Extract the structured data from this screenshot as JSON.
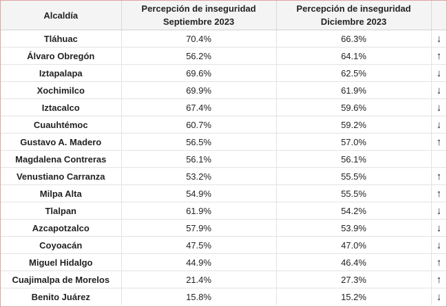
{
  "header": {
    "col_alcaldia": "Alcaldía",
    "col_sep_line1": "Percepción de inseguridad",
    "col_sep_line2": "Septiembre 2023",
    "col_dic_line1": "Percepción de inseguridad",
    "col_dic_line2": "Diciembre 2023",
    "col_trend": ""
  },
  "rows": [
    {
      "alcaldia": "Tláhuac",
      "sep": "70.4%",
      "dic": "66.3%",
      "trend": "↓"
    },
    {
      "alcaldia": "Álvaro Obregón",
      "sep": "56.2%",
      "dic": "64.1%",
      "trend": "↑"
    },
    {
      "alcaldia": "Iztapalapa",
      "sep": "69.6%",
      "dic": "62.5%",
      "trend": "↓"
    },
    {
      "alcaldia": "Xochimilco",
      "sep": "69.9%",
      "dic": "61.9%",
      "trend": "↓"
    },
    {
      "alcaldia": "Iztacalco",
      "sep": "67.4%",
      "dic": "59.6%",
      "trend": "↓"
    },
    {
      "alcaldia": "Cuauhtémoc",
      "sep": "60.7%",
      "dic": "59.2%",
      "trend": "↓"
    },
    {
      "alcaldia": "Gustavo A. Madero",
      "sep": "56.5%",
      "dic": "57.0%",
      "trend": "↑"
    },
    {
      "alcaldia": "Magdalena Contreras",
      "sep": "56.1%",
      "dic": "56.1%",
      "trend": ""
    },
    {
      "alcaldia": "Venustiano Carranza",
      "sep": "53.2%",
      "dic": "55.5%",
      "trend": "↑"
    },
    {
      "alcaldia": "Milpa Alta",
      "sep": "54.9%",
      "dic": "55.5%",
      "trend": "↑"
    },
    {
      "alcaldia": "Tlalpan",
      "sep": "61.9%",
      "dic": "54.2%",
      "trend": "↓"
    },
    {
      "alcaldia": "Azcapotzalco",
      "sep": "57.9%",
      "dic": "53.9%",
      "trend": "↓"
    },
    {
      "alcaldia": "Coyoacán",
      "sep": "47.5%",
      "dic": "47.0%",
      "trend": "↓"
    },
    {
      "alcaldia": "Miguel Hidalgo",
      "sep": "44.9%",
      "dic": "46.4%",
      "trend": "↑"
    },
    {
      "alcaldia": "Cuajimalpa de Morelos",
      "sep": "21.4%",
      "dic": "27.3%",
      "trend": "↑"
    },
    {
      "alcaldia": "Benito Juárez",
      "sep": "15.8%",
      "dic": "15.2%",
      "trend": "↓"
    }
  ]
}
